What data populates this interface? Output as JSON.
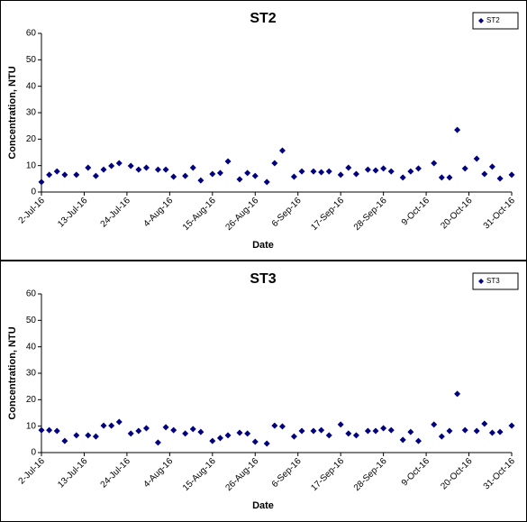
{
  "chart_data": [
    {
      "type": "scatter",
      "title": "ST2",
      "x_label": "Date",
      "y_label": "Concentration, NTU",
      "x": [
        "2016-07-02",
        "2016-07-04",
        "2016-07-06",
        "2016-07-08",
        "2016-07-11",
        "2016-07-14",
        "2016-07-16",
        "2016-07-18",
        "2016-07-20",
        "2016-07-22",
        "2016-07-25",
        "2016-07-27",
        "2016-07-29",
        "2016-08-01",
        "2016-08-03",
        "2016-08-05",
        "2016-08-08",
        "2016-08-10",
        "2016-08-12",
        "2016-08-15",
        "2016-08-17",
        "2016-08-19",
        "2016-08-22",
        "2016-08-24",
        "2016-08-26",
        "2016-08-29",
        "2016-08-31",
        "2016-09-02",
        "2016-09-05",
        "2016-09-07",
        "2016-09-10",
        "2016-09-12",
        "2016-09-14",
        "2016-09-17",
        "2016-09-19",
        "2016-09-21",
        "2016-09-24",
        "2016-09-26",
        "2016-09-28",
        "2016-09-30",
        "2016-10-03",
        "2016-10-05",
        "2016-10-07",
        "2016-10-11",
        "2016-10-13",
        "2016-10-15",
        "2016-10-17",
        "2016-10-19",
        "2016-10-22",
        "2016-10-24",
        "2016-10-26",
        "2016-10-28",
        "2016-10-31"
      ],
      "series": [
        {
          "name": "ST2",
          "color": "#000080",
          "values": [
            3.8,
            6.5,
            7.8,
            6.5,
            6.5,
            9.2,
            6.1,
            8.5,
            9.9,
            10.9,
            9.9,
            8.5,
            9.2,
            8.5,
            8.5,
            5.8,
            6.1,
            9.2,
            4.4,
            6.8,
            7.2,
            11.6,
            4.8,
            7.2,
            6.1,
            3.8,
            10.9,
            15.7,
            5.8,
            7.8,
            7.8,
            7.5,
            7.8,
            6.5,
            9.2,
            6.8,
            8.5,
            8.2,
            8.9,
            7.8,
            5.5,
            7.8,
            8.9,
            10.9,
            5.5,
            5.5,
            23.5,
            8.9,
            12.6,
            6.8,
            9.6,
            5.1,
            6.5
          ]
        }
      ],
      "xlim": [
        "2016-07-02",
        "2016-10-31"
      ],
      "xticks": [
        {
          "value": "2016-07-02",
          "label": "2-Jul-16"
        },
        {
          "value": "2016-07-13",
          "label": "13-Jul-16"
        },
        {
          "value": "2016-07-24",
          "label": "24-Jul-16"
        },
        {
          "value": "2016-08-04",
          "label": "4-Aug-16"
        },
        {
          "value": "2016-08-15",
          "label": "15-Aug-16"
        },
        {
          "value": "2016-08-26",
          "label": "26-Aug-16"
        },
        {
          "value": "2016-09-06",
          "label": "6-Sep-16"
        },
        {
          "value": "2016-09-17",
          "label": "17-Sep-16"
        },
        {
          "value": "2016-09-28",
          "label": "28-Sep-16"
        },
        {
          "value": "2016-10-09",
          "label": "9-Oct-16"
        },
        {
          "value": "2016-10-20",
          "label": "20-Oct-16"
        },
        {
          "value": "2016-10-31",
          "label": "31-Oct-16"
        }
      ],
      "ylim": [
        0,
        60
      ],
      "yticks": [
        0,
        10,
        20,
        30,
        40,
        50,
        60
      ],
      "grid": false,
      "legend": "top-right"
    },
    {
      "type": "scatter",
      "title": "ST3",
      "x_label": "Date",
      "y_label": "Concentration, NTU",
      "x": [
        "2016-07-02",
        "2016-07-04",
        "2016-07-06",
        "2016-07-08",
        "2016-07-11",
        "2016-07-14",
        "2016-07-16",
        "2016-07-18",
        "2016-07-20",
        "2016-07-22",
        "2016-07-25",
        "2016-07-27",
        "2016-07-29",
        "2016-08-01",
        "2016-08-03",
        "2016-08-05",
        "2016-08-08",
        "2016-08-10",
        "2016-08-12",
        "2016-08-15",
        "2016-08-17",
        "2016-08-19",
        "2016-08-22",
        "2016-08-24",
        "2016-08-26",
        "2016-08-29",
        "2016-08-31",
        "2016-09-02",
        "2016-09-05",
        "2016-09-07",
        "2016-09-10",
        "2016-09-12",
        "2016-09-14",
        "2016-09-17",
        "2016-09-19",
        "2016-09-21",
        "2016-09-24",
        "2016-09-26",
        "2016-09-28",
        "2016-09-30",
        "2016-10-03",
        "2016-10-05",
        "2016-10-07",
        "2016-10-11",
        "2016-10-13",
        "2016-10-15",
        "2016-10-17",
        "2016-10-19",
        "2016-10-22",
        "2016-10-24",
        "2016-10-26",
        "2016-10-28",
        "2016-10-31"
      ],
      "series": [
        {
          "name": "ST3",
          "color": "#000080",
          "values": [
            8.5,
            8.5,
            8.2,
            4.4,
            6.5,
            6.5,
            6.1,
            10.2,
            10.2,
            11.6,
            7.2,
            8.2,
            9.2,
            3.8,
            9.6,
            8.5,
            7.2,
            8.9,
            7.8,
            4.4,
            5.5,
            6.5,
            7.5,
            7.2,
            4.1,
            3.4,
            10.2,
            9.9,
            6.1,
            8.2,
            8.2,
            8.5,
            6.5,
            10.6,
            7.2,
            6.5,
            8.2,
            8.2,
            9.2,
            8.5,
            4.8,
            7.8,
            4.4,
            10.6,
            6.1,
            8.2,
            22.2,
            8.5,
            8.2,
            10.9,
            7.5,
            7.8,
            10.2
          ]
        }
      ],
      "xlim": [
        "2016-07-02",
        "2016-10-31"
      ],
      "xticks": [
        {
          "value": "2016-07-02",
          "label": "2-Jul-16"
        },
        {
          "value": "2016-07-13",
          "label": "13-Jul-16"
        },
        {
          "value": "2016-07-24",
          "label": "24-Jul-16"
        },
        {
          "value": "2016-08-04",
          "label": "4-Aug-16"
        },
        {
          "value": "2016-08-15",
          "label": "15-Aug-16"
        },
        {
          "value": "2016-08-26",
          "label": "26-Aug-16"
        },
        {
          "value": "2016-09-06",
          "label": "6-Sep-16"
        },
        {
          "value": "2016-09-17",
          "label": "17-Sep-16"
        },
        {
          "value": "2016-09-28",
          "label": "28-Sep-16"
        },
        {
          "value": "2016-10-09",
          "label": "9-Oct-16"
        },
        {
          "value": "2016-10-20",
          "label": "20-Oct-16"
        },
        {
          "value": "2016-10-31",
          "label": "31-Oct-16"
        }
      ],
      "ylim": [
        0,
        60
      ],
      "yticks": [
        0,
        10,
        20,
        30,
        40,
        50,
        60
      ],
      "grid": false,
      "legend": "top-right"
    }
  ]
}
